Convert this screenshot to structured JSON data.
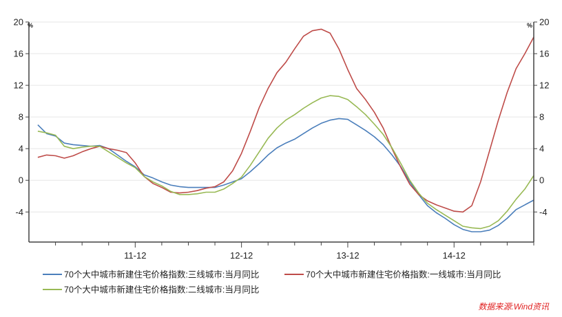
{
  "chart_data": {
    "type": "line",
    "unit_label_left": "%",
    "unit_label_right": "%",
    "ylim": [
      -7.8,
      20
    ],
    "yticks": [
      -4,
      0,
      4,
      8,
      12,
      16,
      20
    ],
    "x_tick_labels": [
      {
        "label": "11-12",
        "month_index": 11
      },
      {
        "label": "12-12",
        "month_index": 23
      },
      {
        "label": "13-12",
        "month_index": 35
      },
      {
        "label": "14-12",
        "month_index": 47
      }
    ],
    "x_range": [
      -1,
      56
    ],
    "grid": {
      "horizontal": true,
      "vertical": false
    },
    "legend_placement": "bottom",
    "series": [
      {
        "name": "70个大中城市新建住宅价格指数:三线城市:当月同比",
        "color": "#4a7ebb",
        "values": [
          7.0,
          5.9,
          5.6,
          4.7,
          4.5,
          4.4,
          4.3,
          4.4,
          4.0,
          3.2,
          2.4,
          1.7,
          0.7,
          0.3,
          -0.2,
          -0.6,
          -0.8,
          -0.9,
          -0.9,
          -0.9,
          -0.9,
          -0.6,
          -0.2,
          0.2,
          1.1,
          2.1,
          3.2,
          4.1,
          4.7,
          5.2,
          5.9,
          6.6,
          7.2,
          7.6,
          7.8,
          7.7,
          7.0,
          6.3,
          5.5,
          4.5,
          3.2,
          1.7,
          -0.2,
          -1.8,
          -3.2,
          -4.1,
          -4.8,
          -5.6,
          -6.2,
          -6.5,
          -6.5,
          -6.3,
          -5.7,
          -4.8,
          -3.7,
          -3.1,
          -2.5
        ]
      },
      {
        "name": "70个大中城市新建住宅价格指数:一线城市:当月同比",
        "color": "#be4b48",
        "values": [
          2.9,
          3.2,
          3.1,
          2.8,
          3.1,
          3.6,
          4.0,
          4.3,
          4.0,
          3.8,
          3.5,
          2.2,
          0.5,
          -0.4,
          -0.9,
          -1.5,
          -1.6,
          -1.5,
          -1.3,
          -1.0,
          -0.8,
          -0.2,
          1.2,
          3.4,
          6.2,
          9.2,
          11.6,
          13.6,
          14.9,
          16.6,
          18.2,
          18.9,
          19.1,
          18.6,
          16.6,
          14.0,
          11.6,
          10.2,
          8.6,
          6.6,
          4.0,
          1.6,
          -0.5,
          -1.8,
          -2.6,
          -3.1,
          -3.5,
          -3.9,
          -4.0,
          -3.2,
          -0.2,
          3.7,
          7.6,
          11.1,
          14.1,
          16.0,
          18.1
        ]
      },
      {
        "name": "70个大中城市新建住宅价格指数:二线城市:当月同比",
        "color": "#98b954",
        "values": [
          6.2,
          6.0,
          5.7,
          4.3,
          4.0,
          4.2,
          4.3,
          4.3,
          3.6,
          2.9,
          2.2,
          1.6,
          0.5,
          -0.2,
          -0.7,
          -1.4,
          -1.8,
          -1.8,
          -1.7,
          -1.5,
          -1.5,
          -1.1,
          -0.4,
          0.4,
          1.9,
          3.6,
          5.3,
          6.6,
          7.6,
          8.3,
          9.1,
          9.8,
          10.4,
          10.7,
          10.6,
          10.2,
          9.3,
          8.3,
          7.1,
          5.8,
          4.1,
          2.1,
          0.0,
          -1.6,
          -2.9,
          -3.7,
          -4.4,
          -5.1,
          -5.8,
          -6.0,
          -6.1,
          -5.8,
          -5.1,
          -3.9,
          -2.4,
          -1.1,
          0.6
        ]
      }
    ]
  },
  "source_note": "数据来源:Wind资讯",
  "style": {
    "axis_color": "#404040",
    "grid_color": "#e6e6e6",
    "source_note_color": "#e02020"
  }
}
